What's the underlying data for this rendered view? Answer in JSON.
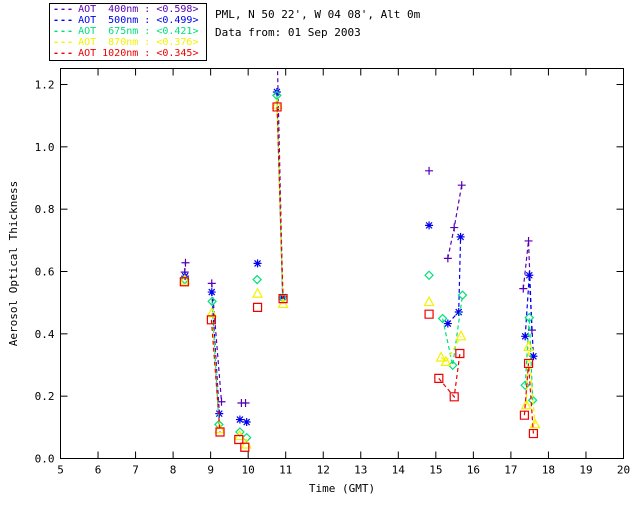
{
  "header": {
    "title_line1": "PML, N 50 22', W 04 08', Alt 0m",
    "title_line2": "Data from: 01 Sep 2003"
  },
  "legend": {
    "items": [
      {
        "id": "400nm",
        "sample": "---",
        "text": "AOT  400nm : <0.598>",
        "color": "#5a00b4"
      },
      {
        "id": "500nm",
        "sample": "---",
        "text": "AOT  500nm : <0.499>",
        "color": "#0000ee"
      },
      {
        "id": "675nm",
        "sample": "---",
        "text": "AOT  675nm : <0.421>",
        "color": "#00e07a"
      },
      {
        "id": "870nm",
        "sample": "---",
        "text": "AOT  870nm : <0.376>",
        "color": "#f2f200"
      },
      {
        "id": "1020nm",
        "sample": "---",
        "text": "AOT 1020nm : <0.345>",
        "color": "#ee0000"
      }
    ]
  },
  "chart_data": {
    "type": "line",
    "xlabel": "Time (GMT)",
    "ylabel": "Aerosol Optical Thickness",
    "xlim": [
      5,
      20
    ],
    "ylim": [
      0,
      1.25
    ],
    "xticks": [
      "5",
      "6",
      "7",
      "8",
      "9",
      "10",
      "11",
      "12",
      "13",
      "14",
      "15",
      "16",
      "17",
      "18",
      "19",
      "20"
    ],
    "yticks": [
      "0.0",
      "0.2",
      "0.4",
      "0.6",
      "0.8",
      "1.0",
      "1.2"
    ],
    "grid": false,
    "legend_position": "top-left-outside",
    "series": [
      {
        "name": "AOT 400nm",
        "mean_label": "<0.598>",
        "color": "#5a00b4",
        "marker": "plus",
        "segments": [
          [
            [
              8.31,
              0.598
            ],
            [
              8.33,
              0.628
            ]
          ],
          [
            [
              9.03,
              0.562
            ],
            [
              9.29,
              0.182
            ]
          ],
          [
            [
              9.82,
              0.178
            ]
          ],
          [
            [
              9.93,
              0.178
            ]
          ],
          [
            [
              10.77,
              1.31
            ],
            [
              10.92,
              0.52
            ]
          ],
          [
            [
              14.82,
              0.923
            ]
          ],
          [
            [
              15.32,
              0.642
            ],
            [
              15.49,
              0.741
            ],
            [
              15.69,
              0.877
            ]
          ],
          [
            [
              17.33,
              0.545
            ],
            [
              17.47,
              0.698
            ],
            [
              17.56,
              0.412
            ]
          ]
        ]
      },
      {
        "name": "AOT 500nm",
        "mean_label": "<0.499>",
        "color": "#0000ee",
        "marker": "asterisk",
        "segments": [
          [
            [
              8.32,
              0.585
            ]
          ],
          [
            [
              9.03,
              0.534
            ],
            [
              9.23,
              0.144
            ]
          ],
          [
            [
              9.78,
              0.125
            ]
          ],
          [
            [
              9.96,
              0.117
            ]
          ],
          [
            [
              10.25,
              0.626
            ]
          ],
          [
            [
              10.765,
              1.176
            ],
            [
              10.92,
              0.518
            ]
          ],
          [
            [
              14.82,
              0.748
            ]
          ],
          [
            [
              15.32,
              0.433
            ],
            [
              15.61,
              0.47
            ],
            [
              15.66,
              0.711
            ]
          ],
          [
            [
              17.38,
              0.392
            ],
            [
              17.49,
              0.588
            ],
            [
              17.6,
              0.328
            ]
          ]
        ]
      },
      {
        "name": "AOT 675nm",
        "mean_label": "<0.421>",
        "color": "#00e07a",
        "marker": "diamond",
        "segments": [
          [
            [
              8.31,
              0.574
            ]
          ],
          [
            [
              9.04,
              0.504
            ],
            [
              9.22,
              0.109
            ]
          ],
          [
            [
              9.78,
              0.085
            ]
          ],
          [
            [
              9.96,
              0.067
            ]
          ],
          [
            [
              10.24,
              0.574
            ]
          ],
          [
            [
              10.765,
              1.165
            ],
            [
              10.92,
              0.515
            ]
          ],
          [
            [
              14.82,
              0.588
            ]
          ],
          [
            [
              15.18,
              0.449
            ],
            [
              15.45,
              0.299
            ],
            [
              15.71,
              0.524
            ]
          ],
          [
            [
              17.38,
              0.235
            ],
            [
              17.49,
              0.452
            ],
            [
              17.58,
              0.187
            ]
          ]
        ]
      },
      {
        "name": "AOT 870nm",
        "mean_label": "<0.376>",
        "color": "#f2f200",
        "marker": "triangle",
        "segments": [
          [
            [
              8.31,
              0.571
            ]
          ],
          [
            [
              9.03,
              0.466
            ],
            [
              9.24,
              0.094
            ]
          ],
          [
            [
              9.77,
              0.072
            ]
          ],
          [
            [
              9.95,
              0.045
            ]
          ],
          [
            [
              10.25,
              0.529
            ]
          ],
          [
            [
              10.77,
              1.135
            ],
            [
              10.93,
              0.496
            ]
          ],
          [
            [
              14.82,
              0.502
            ]
          ],
          [
            [
              15.14,
              0.324
            ],
            [
              15.27,
              0.31
            ],
            [
              15.67,
              0.392
            ]
          ],
          [
            [
              17.41,
              0.171
            ],
            [
              17.47,
              0.358
            ],
            [
              17.64,
              0.11
            ]
          ]
        ]
      },
      {
        "name": "AOT 1020nm",
        "mean_label": "<0.345>",
        "color": "#ee0000",
        "marker": "square",
        "segments": [
          [
            [
              8.3,
              0.567
            ]
          ],
          [
            [
              9.02,
              0.445
            ],
            [
              9.25,
              0.085
            ]
          ],
          [
            [
              9.75,
              0.061
            ]
          ],
          [
            [
              9.91,
              0.036
            ]
          ],
          [
            [
              10.25,
              0.485
            ]
          ],
          [
            [
              10.77,
              1.128
            ],
            [
              10.93,
              0.513
            ]
          ],
          [
            [
              14.82,
              0.463
            ]
          ],
          [
            [
              15.08,
              0.257
            ],
            [
              15.49,
              0.198
            ],
            [
              15.64,
              0.337
            ]
          ],
          [
            [
              17.36,
              0.139
            ],
            [
              17.47,
              0.305
            ],
            [
              17.6,
              0.08
            ]
          ]
        ]
      }
    ]
  }
}
